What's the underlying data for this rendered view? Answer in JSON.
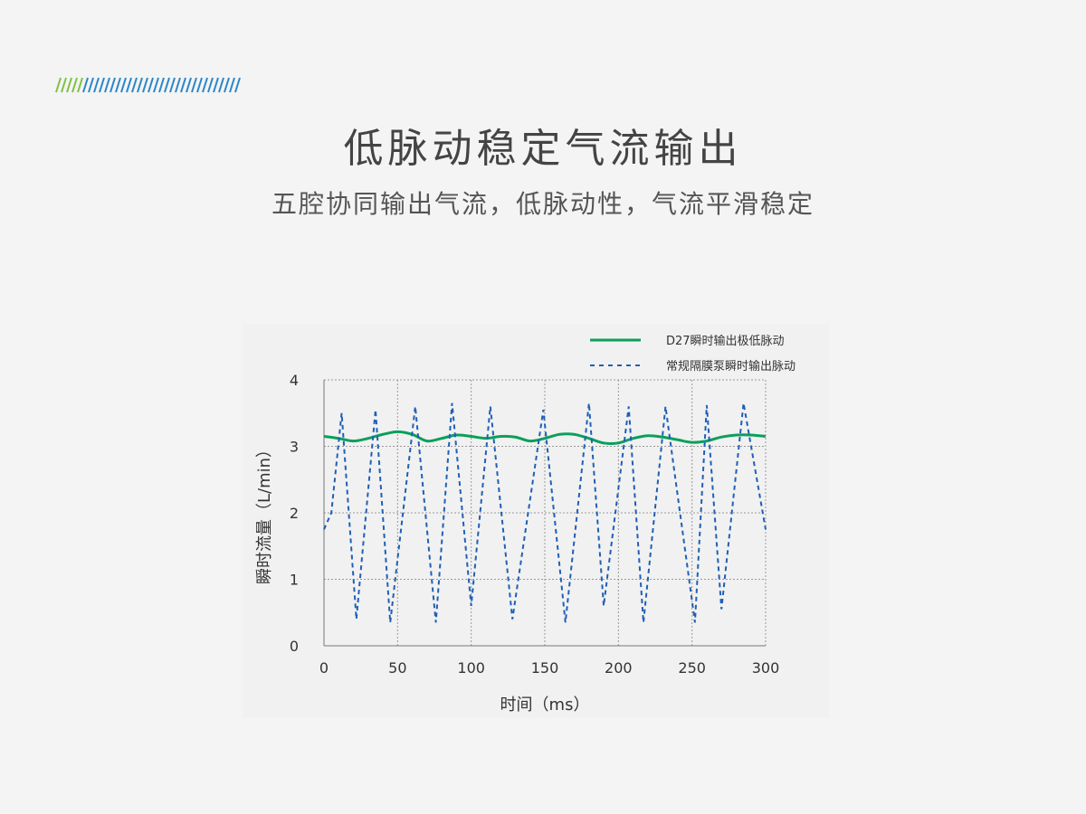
{
  "header": {
    "title": "低脉动稳定气流输出",
    "subtitle": "五腔协同输出气流，低脉动性，气流平滑稳定"
  },
  "colors": {
    "stripe_green": "#7cc242",
    "stripe_blue": "#2a86c8",
    "series_green": "#0aa05a",
    "series_blue": "#1f5fb5",
    "grid": "#999999"
  },
  "chart_data": {
    "type": "line",
    "xlabel": "时间（ms）",
    "ylabel": "瞬时流量（L/min）",
    "xlim": [
      0,
      300
    ],
    "ylim": [
      0,
      4
    ],
    "xticks": [
      "0",
      "50",
      "100",
      "150",
      "200",
      "250",
      "300"
    ],
    "yticks": [
      "0",
      "1",
      "2",
      "3",
      "4"
    ],
    "grid": true,
    "legend_position": "top-right",
    "series": [
      {
        "name": "D27瞬时输出极低脉动",
        "style": "solid",
        "color": "#0aa05a",
        "x": [
          0,
          10,
          20,
          30,
          40,
          50,
          60,
          70,
          80,
          90,
          100,
          110,
          120,
          130,
          140,
          150,
          160,
          170,
          180,
          190,
          200,
          210,
          220,
          230,
          240,
          250,
          260,
          270,
          280,
          290,
          300
        ],
        "y": [
          3.15,
          3.12,
          3.08,
          3.12,
          3.18,
          3.22,
          3.18,
          3.08,
          3.12,
          3.17,
          3.15,
          3.12,
          3.15,
          3.14,
          3.08,
          3.12,
          3.18,
          3.18,
          3.12,
          3.05,
          3.05,
          3.12,
          3.16,
          3.14,
          3.1,
          3.06,
          3.08,
          3.14,
          3.17,
          3.17,
          3.15
        ]
      },
      {
        "name": "常规隔膜泵瞬时输出脉动",
        "style": "dashed",
        "color": "#1f5fb5",
        "x": [
          0,
          5,
          12,
          22,
          35,
          45,
          62,
          76,
          87,
          100,
          113,
          128,
          149,
          164,
          180,
          190,
          207,
          217,
          232,
          252,
          260,
          270,
          285,
          300
        ],
        "y": [
          1.75,
          2.0,
          3.5,
          0.4,
          3.55,
          0.35,
          3.6,
          0.35,
          3.65,
          0.6,
          3.6,
          0.4,
          3.55,
          0.35,
          3.65,
          0.6,
          3.6,
          0.35,
          3.6,
          0.35,
          3.62,
          0.55,
          3.65,
          1.75
        ]
      }
    ]
  }
}
